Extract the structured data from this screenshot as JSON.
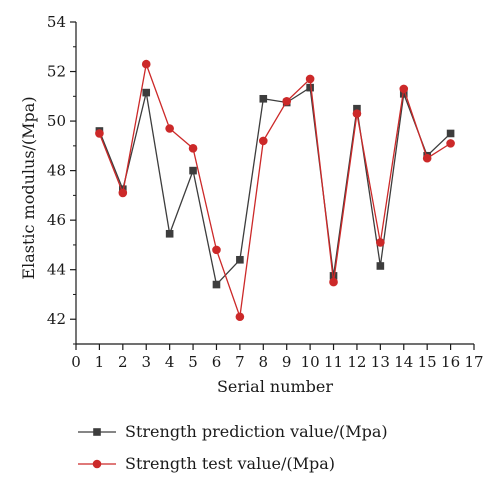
{
  "chart_data": {
    "type": "line",
    "xlabel": "Serial number",
    "ylabel": "Elastic modulus/(Mpa)",
    "xlim": [
      0,
      17
    ],
    "ylim": [
      41,
      54
    ],
    "x_ticks": [
      0,
      1,
      2,
      3,
      4,
      5,
      6,
      7,
      8,
      9,
      10,
      11,
      12,
      13,
      14,
      15,
      16,
      17
    ],
    "y_ticks": [
      42,
      44,
      46,
      48,
      50,
      52,
      54
    ],
    "grid": false,
    "legend_position": "bottom",
    "x": [
      1,
      2,
      3,
      4,
      5,
      6,
      7,
      8,
      9,
      10,
      11,
      12,
      13,
      14,
      15,
      16
    ],
    "series": [
      {
        "name": "Strength prediction value/(Mpa)",
        "marker": "square",
        "color": "#3d3d3d",
        "values": [
          49.6,
          47.25,
          51.15,
          45.45,
          48.0,
          43.4,
          44.4,
          50.9,
          50.75,
          51.35,
          43.75,
          50.5,
          44.15,
          51.1,
          48.6,
          49.5
        ]
      },
      {
        "name": "Strength test value/(Mpa)",
        "marker": "circle",
        "color": "#cc2929",
        "values": [
          49.5,
          47.1,
          52.3,
          49.7,
          48.9,
          44.8,
          42.1,
          49.2,
          50.8,
          51.7,
          43.5,
          50.3,
          45.1,
          51.3,
          48.5,
          49.1
        ]
      }
    ]
  }
}
